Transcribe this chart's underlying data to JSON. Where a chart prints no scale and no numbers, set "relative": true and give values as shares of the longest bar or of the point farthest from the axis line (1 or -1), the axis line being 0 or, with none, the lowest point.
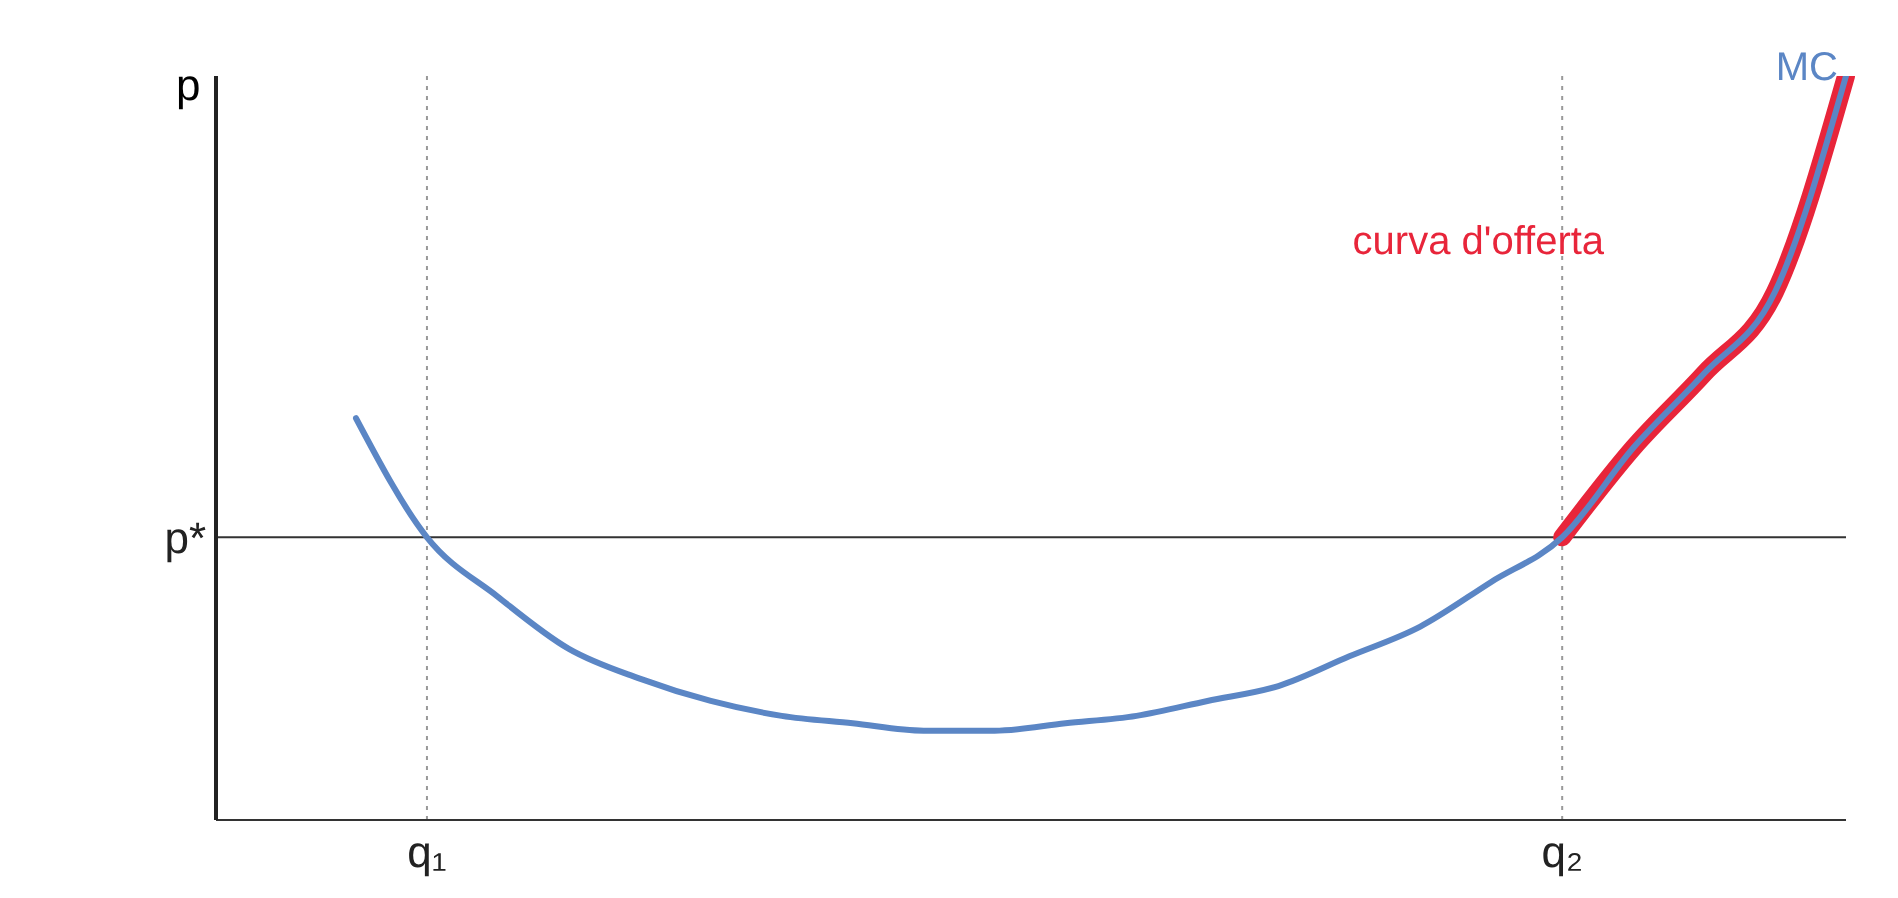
{
  "chart_data": {
    "type": "line",
    "relative": true,
    "ylabel": "p",
    "categories": [
      null,
      "q₁",
      null,
      null,
      null,
      null,
      null,
      null,
      null,
      null,
      null,
      null,
      null,
      null,
      null,
      null,
      null,
      "q₂",
      null,
      null,
      null,
      null
    ],
    "series": [
      {
        "name": "MC",
        "color": "#5b86c5",
        "values": [
          0.54,
          0.38,
          0.3,
          0.23,
          0.19,
          0.16,
          0.14,
          0.13,
          0.12,
          0.12,
          0.13,
          0.14,
          0.16,
          0.18,
          0.22,
          0.26,
          0.32,
          0.38,
          0.5,
          0.6,
          0.71,
          1
        ]
      },
      {
        "name": "curva d'offerta",
        "color": "#e8253a",
        "values": [
          null,
          null,
          null,
          null,
          null,
          null,
          null,
          null,
          null,
          null,
          null,
          null,
          null,
          null,
          null,
          null,
          null,
          0.38,
          0.5,
          0.6,
          0.71,
          1
        ]
      }
    ],
    "ref_lines": [
      {
        "axis": "y",
        "value": 0.38,
        "label": "p*",
        "color": "#333333",
        "line_style": "solid"
      },
      {
        "axis": "x",
        "value": "q₁",
        "label": null,
        "color": "#999999",
        "line_style": "dotted"
      },
      {
        "axis": "x",
        "value": "q₂",
        "label": null,
        "color": "#999999",
        "line_style": "dotted"
      }
    ],
    "legend": false,
    "grid": false,
    "marker": "none"
  }
}
